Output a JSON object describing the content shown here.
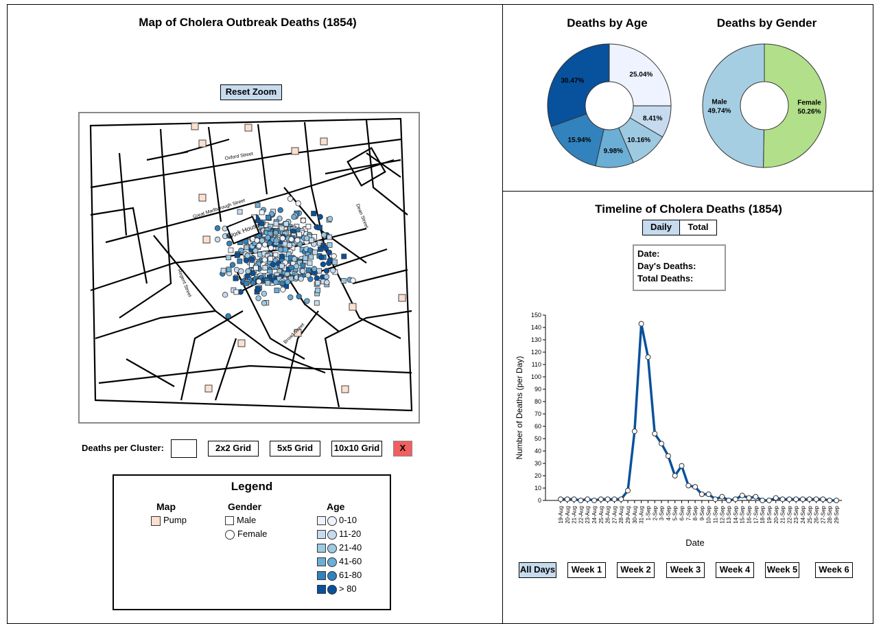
{
  "colors": {
    "age": [
      "#eff3ff",
      "#c6dbef",
      "#9ecae1",
      "#6baed6",
      "#3182bd",
      "#08519c"
    ],
    "pump": "#fde0d0",
    "female": "#b2df8a",
    "male": "#a6cee3",
    "line": "#08519c",
    "close": "#f06060",
    "selected": "#c7dbef"
  },
  "map_panel": {
    "title": "Map of Cholera Outbreak Deaths (1854)",
    "reset_zoom": "Reset Zoom",
    "streets": {
      "oxford": "Oxford Street",
      "great_marlborough": "Great Marlborough Street",
      "dean": "Dean Street",
      "regent": "Regent Street",
      "broad": "Broad Street",
      "work_house": "Work House"
    },
    "cluster": {
      "label": "Deaths per Cluster:",
      "value": "",
      "btn_2x2": "2x2 Grid",
      "btn_5x5": "5x5 Grid",
      "btn_10x10": "10x10 Grid",
      "btn_close": "X"
    },
    "legend": {
      "title": "Legend",
      "map_header": "Map",
      "pump_label": "Pump",
      "gender_header": "Gender",
      "male_label": "Male",
      "female_label": "Female",
      "age_header": "Age",
      "age_labels": [
        "0-10",
        "11-20",
        "21-40",
        "41-60",
        "61-80",
        "> 80"
      ]
    }
  },
  "age_chart": {
    "title": "Deaths by Age",
    "slices": [
      {
        "label": "25.04%",
        "value": 25.04,
        "color": "#eff3ff"
      },
      {
        "label": "8.41%",
        "value": 8.41,
        "color": "#c6dbef"
      },
      {
        "label": "10.16%",
        "value": 10.16,
        "color": "#9ecae1"
      },
      {
        "label": "9.98%",
        "value": 9.98,
        "color": "#6baed6"
      },
      {
        "label": "15.94%",
        "value": 15.94,
        "color": "#3182bd"
      },
      {
        "label": "30.47%",
        "value": 30.47,
        "color": "#08519c"
      }
    ]
  },
  "gender_chart": {
    "title": "Deaths by Gender",
    "slices": [
      {
        "name": "Female",
        "label": "50.26%",
        "value": 50.26,
        "color": "#b2df8a"
      },
      {
        "name": "Male",
        "label": "49.74%",
        "value": 49.74,
        "color": "#a6cee3"
      }
    ]
  },
  "timeline": {
    "title": "Timeline of Cholera Deaths (1854)",
    "mode_daily": "Daily",
    "mode_total": "Total",
    "info": {
      "date": "Date:",
      "days_deaths": "Day's Deaths:",
      "total_deaths": "Total Deaths:"
    },
    "weeks": [
      "All Days",
      "Week 1",
      "Week 2",
      "Week 3",
      "Week 4",
      "Week 5",
      "Week 6"
    ]
  },
  "chart_data": {
    "type": "line",
    "xlabel": "Date",
    "ylabel": "Number of Deaths (per Day)",
    "ylim": [
      0,
      150
    ],
    "yticks": [
      0,
      10,
      20,
      30,
      40,
      50,
      60,
      70,
      80,
      90,
      100,
      110,
      120,
      130,
      140,
      150
    ],
    "x": [
      "19-Aug",
      "20-Aug",
      "21-Aug",
      "22-Aug",
      "23-Aug",
      "24-Aug",
      "25-Aug",
      "26-Aug",
      "27-Aug",
      "28-Aug",
      "29-Aug",
      "30-Aug",
      "31-Aug",
      "1-Sep",
      "2-Sep",
      "3-Sep",
      "4-Sep",
      "5-Sep",
      "6-Sep",
      "7-Sep",
      "8-Sep",
      "9-Sep",
      "10-Sep",
      "11-Sep",
      "12-Sep",
      "13-Sep",
      "14-Sep",
      "15-Sep",
      "16-Sep",
      "17-Sep",
      "18-Sep",
      "19-Sep",
      "20-Sep",
      "21-Sep",
      "22-Sep",
      "23-Sep",
      "24-Sep",
      "25-Sep",
      "26-Sep",
      "27-Sep",
      "28-Sep",
      "29-Sep"
    ],
    "series": [
      {
        "values": [
          1,
          1,
          1,
          0,
          1,
          0,
          1,
          1,
          1,
          1,
          8,
          56,
          143,
          116,
          54,
          46,
          36,
          20,
          28,
          12,
          11,
          5,
          5,
          1,
          3,
          0,
          1,
          4,
          2,
          3,
          0,
          0,
          2,
          1,
          1,
          1,
          1,
          1,
          1,
          1,
          0,
          0
        ]
      }
    ]
  }
}
